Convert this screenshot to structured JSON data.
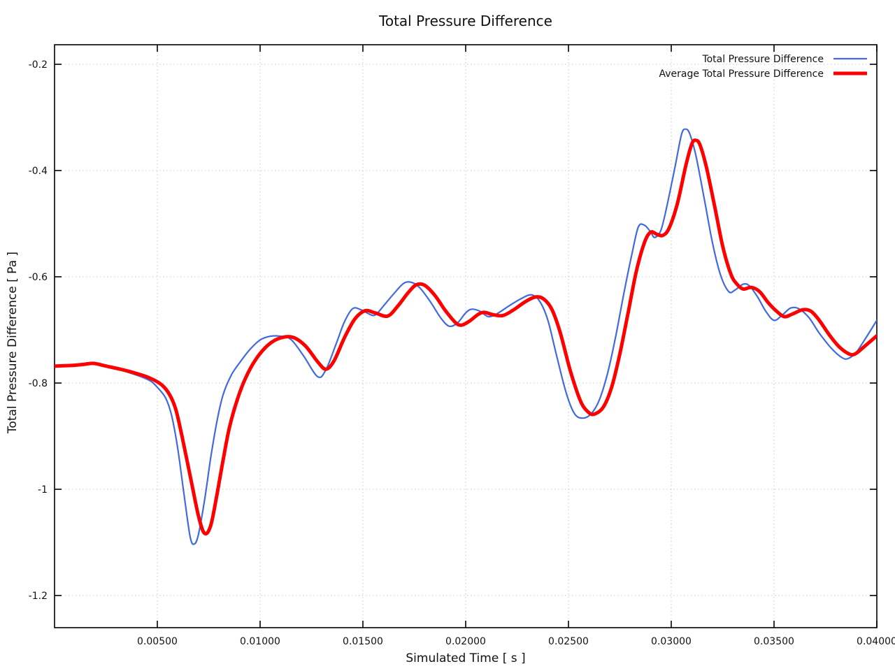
{
  "chart_data": {
    "type": "line",
    "title": "Total Pressure Difference",
    "xlabel": "Simulated Time [ s ]",
    "ylabel": "Total Pressure Difference [ Pa ]",
    "xlim": [
      0,
      0.04
    ],
    "ylim": [
      -1.2605,
      -0.1632
    ],
    "grid": true,
    "grid_style": "dotted",
    "grid_color": "#c8c8c8",
    "border_color": "#000000",
    "legend_position": "top-right-inside",
    "x_ticks": {
      "values": [
        0.005,
        0.01,
        0.015,
        0.02,
        0.025,
        0.03,
        0.035,
        0.04
      ],
      "labels": [
        "0.00500",
        "0.01000",
        "0.01500",
        "0.02000",
        "0.02500",
        "0.03000",
        "0.03500",
        "0.04000"
      ]
    },
    "y_ticks": {
      "values": [
        -0.2,
        -0.4,
        -0.6,
        -0.8,
        -1.0,
        -1.2
      ],
      "labels": [
        "-0.2",
        "-0.4",
        "-0.6",
        "-0.8",
        "-1",
        "-1.2"
      ]
    },
    "series": [
      {
        "name": "Total Pressure Difference",
        "color": "#4169e1",
        "width": 2.2,
        "points": [
          [
            0.0,
            -0.767
          ],
          [
            0.0008,
            -0.766
          ],
          [
            0.0013,
            -0.764
          ],
          [
            0.0018,
            -0.762
          ],
          [
            0.0024,
            -0.767
          ],
          [
            0.003,
            -0.773
          ],
          [
            0.0036,
            -0.78
          ],
          [
            0.0042,
            -0.788
          ],
          [
            0.0047,
            -0.797
          ],
          [
            0.005,
            -0.808
          ],
          [
            0.0054,
            -0.828
          ],
          [
            0.0057,
            -0.862
          ],
          [
            0.006,
            -0.925
          ],
          [
            0.0063,
            -1.01
          ],
          [
            0.0066,
            -1.09
          ],
          [
            0.0068,
            -1.103
          ],
          [
            0.007,
            -1.085
          ],
          [
            0.0073,
            -1.02
          ],
          [
            0.0076,
            -0.94
          ],
          [
            0.0079,
            -0.872
          ],
          [
            0.0082,
            -0.822
          ],
          [
            0.0086,
            -0.785
          ],
          [
            0.009,
            -0.762
          ],
          [
            0.0095,
            -0.737
          ],
          [
            0.01,
            -0.719
          ],
          [
            0.0105,
            -0.712
          ],
          [
            0.011,
            -0.712
          ],
          [
            0.0115,
            -0.718
          ],
          [
            0.0121,
            -0.748
          ],
          [
            0.0128,
            -0.788
          ],
          [
            0.0132,
            -0.775
          ],
          [
            0.0137,
            -0.726
          ],
          [
            0.0141,
            -0.685
          ],
          [
            0.0145,
            -0.66
          ],
          [
            0.0149,
            -0.662
          ],
          [
            0.0153,
            -0.67
          ],
          [
            0.0156,
            -0.672
          ],
          [
            0.016,
            -0.655
          ],
          [
            0.0165,
            -0.632
          ],
          [
            0.017,
            -0.612
          ],
          [
            0.0174,
            -0.611
          ],
          [
            0.0178,
            -0.622
          ],
          [
            0.0183,
            -0.648
          ],
          [
            0.0188,
            -0.678
          ],
          [
            0.0192,
            -0.693
          ],
          [
            0.0196,
            -0.687
          ],
          [
            0.02,
            -0.668
          ],
          [
            0.0203,
            -0.661
          ],
          [
            0.0207,
            -0.665
          ],
          [
            0.0211,
            -0.675
          ],
          [
            0.0215,
            -0.67
          ],
          [
            0.0221,
            -0.655
          ],
          [
            0.0227,
            -0.641
          ],
          [
            0.0232,
            -0.634
          ],
          [
            0.0236,
            -0.646
          ],
          [
            0.024,
            -0.682
          ],
          [
            0.0244,
            -0.745
          ],
          [
            0.0249,
            -0.82
          ],
          [
            0.0253,
            -0.858
          ],
          [
            0.0257,
            -0.866
          ],
          [
            0.0261,
            -0.858
          ],
          [
            0.0265,
            -0.832
          ],
          [
            0.0269,
            -0.782
          ],
          [
            0.0273,
            -0.712
          ],
          [
            0.0277,
            -0.63
          ],
          [
            0.0281,
            -0.555
          ],
          [
            0.0284,
            -0.506
          ],
          [
            0.0287,
            -0.503
          ],
          [
            0.029,
            -0.516
          ],
          [
            0.0292,
            -0.526
          ],
          [
            0.0295,
            -0.512
          ],
          [
            0.0298,
            -0.465
          ],
          [
            0.0302,
            -0.39
          ],
          [
            0.0305,
            -0.332
          ],
          [
            0.0307,
            -0.322
          ],
          [
            0.0309,
            -0.331
          ],
          [
            0.0312,
            -0.372
          ],
          [
            0.0316,
            -0.452
          ],
          [
            0.032,
            -0.535
          ],
          [
            0.0324,
            -0.597
          ],
          [
            0.0328,
            -0.628
          ],
          [
            0.0331,
            -0.625
          ],
          [
            0.0335,
            -0.614
          ],
          [
            0.0338,
            -0.617
          ],
          [
            0.0342,
            -0.638
          ],
          [
            0.0346,
            -0.665
          ],
          [
            0.035,
            -0.682
          ],
          [
            0.0354,
            -0.672
          ],
          [
            0.0358,
            -0.659
          ],
          [
            0.0362,
            -0.66
          ],
          [
            0.0367,
            -0.677
          ],
          [
            0.0372,
            -0.706
          ],
          [
            0.0378,
            -0.735
          ],
          [
            0.0383,
            -0.752
          ],
          [
            0.0386,
            -0.754
          ],
          [
            0.039,
            -0.742
          ],
          [
            0.0395,
            -0.713
          ],
          [
            0.04,
            -0.682
          ]
        ]
      },
      {
        "name": "Average Total Pressure Difference",
        "color": "#ff0000",
        "width": 5,
        "points": [
          [
            0.0,
            -0.768
          ],
          [
            0.0008,
            -0.767
          ],
          [
            0.0014,
            -0.765
          ],
          [
            0.0019,
            -0.763
          ],
          [
            0.0025,
            -0.768
          ],
          [
            0.0032,
            -0.774
          ],
          [
            0.0039,
            -0.781
          ],
          [
            0.0046,
            -0.79
          ],
          [
            0.0052,
            -0.803
          ],
          [
            0.0056,
            -0.822
          ],
          [
            0.0059,
            -0.85
          ],
          [
            0.0062,
            -0.9
          ],
          [
            0.0066,
            -0.975
          ],
          [
            0.007,
            -1.05
          ],
          [
            0.0073,
            -1.083
          ],
          [
            0.0076,
            -1.068
          ],
          [
            0.0079,
            -1.01
          ],
          [
            0.0082,
            -0.945
          ],
          [
            0.0085,
            -0.885
          ],
          [
            0.0089,
            -0.83
          ],
          [
            0.0093,
            -0.79
          ],
          [
            0.0098,
            -0.755
          ],
          [
            0.0104,
            -0.728
          ],
          [
            0.011,
            -0.715
          ],
          [
            0.0116,
            -0.714
          ],
          [
            0.0122,
            -0.73
          ],
          [
            0.0128,
            -0.76
          ],
          [
            0.0132,
            -0.774
          ],
          [
            0.0136,
            -0.758
          ],
          [
            0.0141,
            -0.715
          ],
          [
            0.0146,
            -0.68
          ],
          [
            0.0151,
            -0.664
          ],
          [
            0.0156,
            -0.668
          ],
          [
            0.0162,
            -0.674
          ],
          [
            0.0167,
            -0.655
          ],
          [
            0.0172,
            -0.63
          ],
          [
            0.0176,
            -0.615
          ],
          [
            0.018,
            -0.616
          ],
          [
            0.0185,
            -0.635
          ],
          [
            0.019,
            -0.663
          ],
          [
            0.0195,
            -0.686
          ],
          [
            0.0198,
            -0.691
          ],
          [
            0.0202,
            -0.683
          ],
          [
            0.0206,
            -0.671
          ],
          [
            0.0209,
            -0.667
          ],
          [
            0.0213,
            -0.671
          ],
          [
            0.0218,
            -0.673
          ],
          [
            0.0223,
            -0.663
          ],
          [
            0.0229,
            -0.647
          ],
          [
            0.0234,
            -0.638
          ],
          [
            0.0238,
            -0.642
          ],
          [
            0.0242,
            -0.662
          ],
          [
            0.0246,
            -0.705
          ],
          [
            0.0251,
            -0.778
          ],
          [
            0.0256,
            -0.835
          ],
          [
            0.026,
            -0.856
          ],
          [
            0.0263,
            -0.858
          ],
          [
            0.0267,
            -0.845
          ],
          [
            0.0271,
            -0.808
          ],
          [
            0.0275,
            -0.745
          ],
          [
            0.0279,
            -0.668
          ],
          [
            0.0283,
            -0.59
          ],
          [
            0.0287,
            -0.535
          ],
          [
            0.029,
            -0.516
          ],
          [
            0.0293,
            -0.52
          ],
          [
            0.0296,
            -0.522
          ],
          [
            0.0299,
            -0.508
          ],
          [
            0.0303,
            -0.462
          ],
          [
            0.0307,
            -0.392
          ],
          [
            0.031,
            -0.35
          ],
          [
            0.0312,
            -0.343
          ],
          [
            0.0314,
            -0.352
          ],
          [
            0.0317,
            -0.392
          ],
          [
            0.0321,
            -0.465
          ],
          [
            0.0325,
            -0.542
          ],
          [
            0.0329,
            -0.595
          ],
          [
            0.0332,
            -0.614
          ],
          [
            0.0335,
            -0.623
          ],
          [
            0.0339,
            -0.62
          ],
          [
            0.0343,
            -0.628
          ],
          [
            0.0347,
            -0.648
          ],
          [
            0.0351,
            -0.664
          ],
          [
            0.0355,
            -0.675
          ],
          [
            0.0359,
            -0.67
          ],
          [
            0.0364,
            -0.662
          ],
          [
            0.0368,
            -0.665
          ],
          [
            0.0372,
            -0.682
          ],
          [
            0.0377,
            -0.71
          ],
          [
            0.0382,
            -0.733
          ],
          [
            0.0387,
            -0.746
          ],
          [
            0.039,
            -0.744
          ],
          [
            0.0394,
            -0.731
          ],
          [
            0.04,
            -0.711
          ]
        ]
      }
    ]
  }
}
